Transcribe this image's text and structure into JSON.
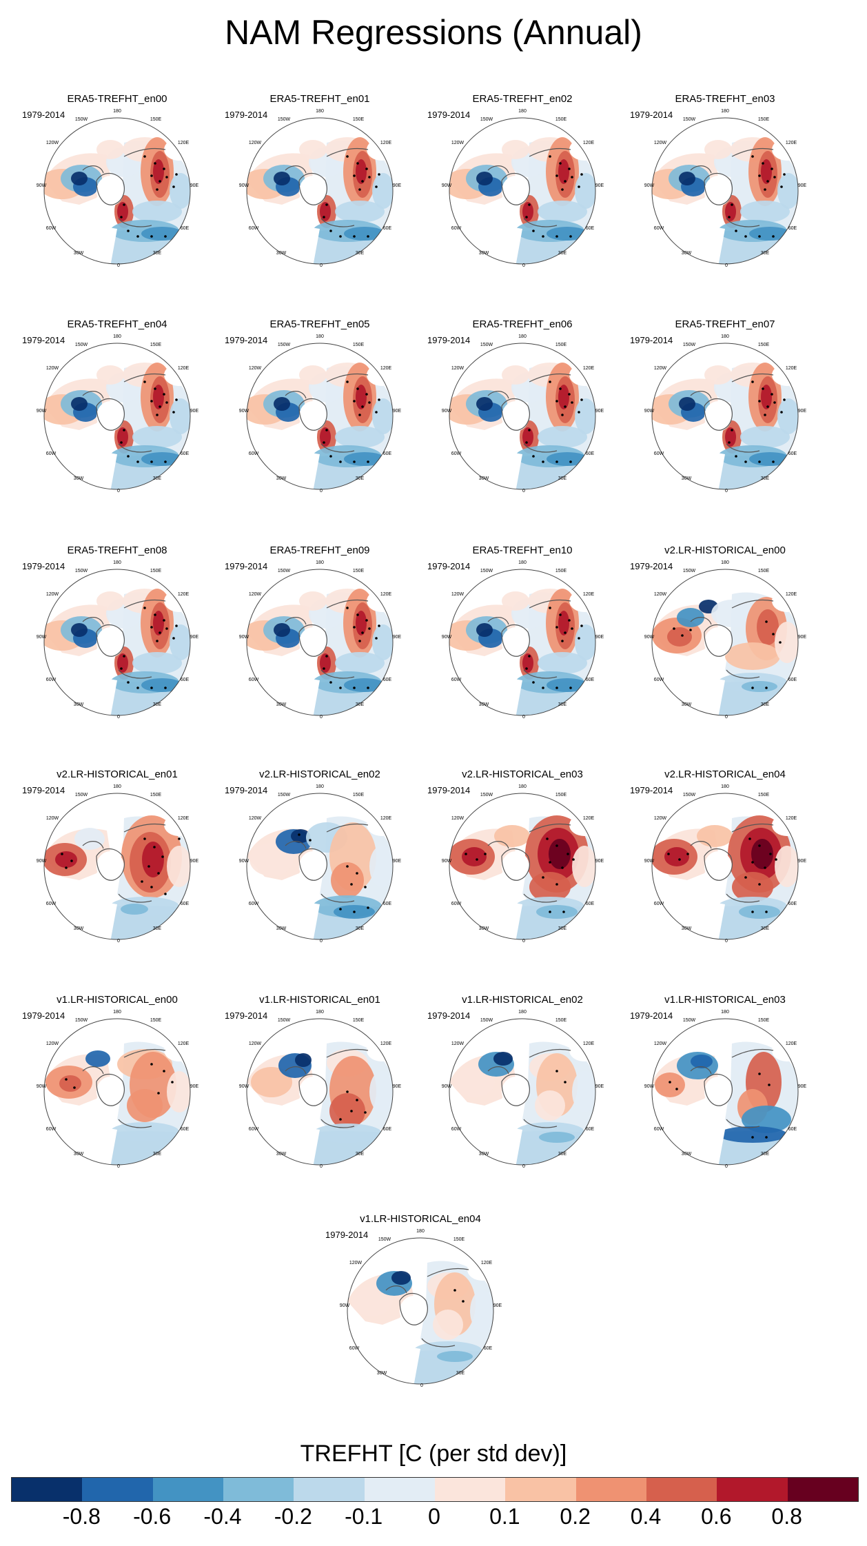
{
  "title": "NAM Regressions (Annual)",
  "period_label": "1979-2014",
  "map_labels": {
    "lon_180": "180",
    "lon_150w": "150W",
    "lon_150e": "150E",
    "lon_120w": "120W",
    "lon_120e": "120E",
    "lon_90w": "90W",
    "lon_90e": "90E",
    "lon_60w": "60W",
    "lon_60e": "60E",
    "lon_30w": "30W",
    "lon_30e": "30E",
    "lon_0": "0"
  },
  "panels": [
    {
      "name": "ERA5-TREFHT_en00",
      "pattern": "era5"
    },
    {
      "name": "ERA5-TREFHT_en01",
      "pattern": "era5"
    },
    {
      "name": "ERA5-TREFHT_en02",
      "pattern": "era5"
    },
    {
      "name": "ERA5-TREFHT_en03",
      "pattern": "era5"
    },
    {
      "name": "ERA5-TREFHT_en04",
      "pattern": "era5"
    },
    {
      "name": "ERA5-TREFHT_en05",
      "pattern": "era5"
    },
    {
      "name": "ERA5-TREFHT_en06",
      "pattern": "era5"
    },
    {
      "name": "ERA5-TREFHT_en07",
      "pattern": "era5"
    },
    {
      "name": "ERA5-TREFHT_en08",
      "pattern": "era5"
    },
    {
      "name": "ERA5-TREFHT_en09",
      "pattern": "era5"
    },
    {
      "name": "ERA5-TREFHT_en10",
      "pattern": "era5"
    },
    {
      "name": "v2.LR-HISTORICAL_en00",
      "pattern": "v2a"
    },
    {
      "name": "v2.LR-HISTORICAL_en01",
      "pattern": "v2warm"
    },
    {
      "name": "v2.LR-HISTORICAL_en02",
      "pattern": "v2b"
    },
    {
      "name": "v2.LR-HISTORICAL_en03",
      "pattern": "v2hot"
    },
    {
      "name": "v2.LR-HISTORICAL_en04",
      "pattern": "v2hot"
    },
    {
      "name": "v1.LR-HISTORICAL_en00",
      "pattern": "v1a"
    },
    {
      "name": "v1.LR-HISTORICAL_en01",
      "pattern": "v1b"
    },
    {
      "name": "v1.LR-HISTORICAL_en02",
      "pattern": "v1c"
    },
    {
      "name": "v1.LR-HISTORICAL_en03",
      "pattern": "v1d"
    },
    {
      "name": "v1.LR-HISTORICAL_en04",
      "pattern": "v1c"
    }
  ],
  "colorbar": {
    "title": "TREFHT [C (per std dev)]",
    "colors": [
      "#08306b",
      "#2166ac",
      "#4393c3",
      "#7fbbd9",
      "#bcd9eb",
      "#e3edf5",
      "#fbe5dc",
      "#f9c2a5",
      "#ef9272",
      "#d6604d",
      "#b2182b",
      "#67001f"
    ],
    "tick_labels": [
      "-0.8",
      "-0.6",
      "-0.4",
      "-0.2",
      "-0.1",
      "0",
      "0.1",
      "0.2",
      "0.4",
      "0.6",
      "0.8"
    ]
  },
  "colors": {
    "land_outline": "#555555",
    "map_outline": "#444444",
    "stipple": "#000000"
  }
}
